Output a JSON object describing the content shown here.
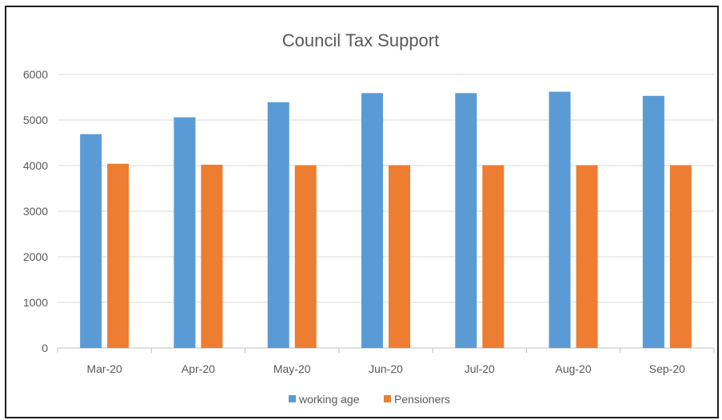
{
  "chart_data": {
    "type": "bar",
    "title": "Council Tax Support",
    "xlabel": "",
    "ylabel": "",
    "categories": [
      "Mar-20",
      "Apr-20",
      "May-20",
      "Jun-20",
      "Jul-20",
      "Aug-20",
      "Sep-20"
    ],
    "series": [
      {
        "name": "working age",
        "color": "#5B9BD5",
        "values": [
          4690,
          5060,
          5390,
          5590,
          5590,
          5620,
          5530
        ]
      },
      {
        "name": "Pensioners",
        "color": "#ED7D31",
        "values": [
          4040,
          4020,
          4010,
          4010,
          4010,
          4010,
          4010
        ]
      }
    ],
    "ylim": [
      0,
      6000
    ],
    "yticks": [
      0,
      1000,
      2000,
      3000,
      4000,
      5000,
      6000
    ],
    "grid": true,
    "legend_position": "bottom"
  }
}
